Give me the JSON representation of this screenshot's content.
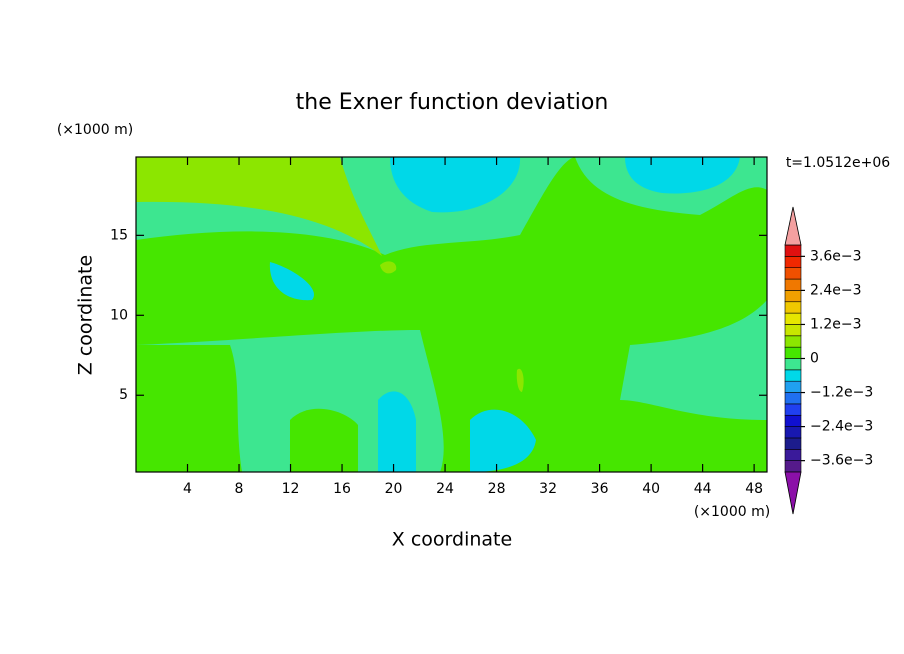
{
  "chart_data": {
    "type": "contour",
    "title": "the Exner function deviation",
    "x_label": "X coordinate",
    "y_label": "Z coordinate",
    "x_unit": "(×1000 m)",
    "y_unit": "(×1000 m)",
    "annotation": "t=1.0512e+06",
    "xlim": [
      0,
      49
    ],
    "ylim": [
      0.2,
      19.9
    ],
    "xticks": [
      4,
      8,
      12,
      16,
      20,
      24,
      28,
      32,
      36,
      40,
      44,
      48
    ],
    "yticks": [
      5,
      10,
      15
    ],
    "colorbar": {
      "clim": [
        -0.004,
        0.004
      ],
      "colors": [
        "#551a8b",
        "#3a1a9a",
        "#1c1c8c",
        "#1818b0",
        "#1010d0",
        "#2040f0",
        "#2070f0",
        "#20a0f0",
        "#00d8e8",
        "#3de690",
        "#46e600",
        "#8ce600",
        "#c8e600",
        "#e6e600",
        "#f0c800",
        "#f0a000",
        "#f07800",
        "#f05000",
        "#f02800",
        "#e01010"
      ],
      "under_color": "#8b10a8",
      "over_color": "#f4a0a0",
      "ticks": [
        {
          "value": -0.0036,
          "label": "−3.6e−3"
        },
        {
          "value": -0.0024,
          "label": "−2.4e−3"
        },
        {
          "value": -0.0012,
          "label": "−1.2e−3"
        },
        0,
        {
          "value": 0.0012,
          "label": "1.2e−3"
        },
        {
          "value": 0.0024,
          "label": "2.4e−3"
        },
        {
          "value": 0.0036,
          "label": "3.6e−3"
        }
      ]
    }
  }
}
